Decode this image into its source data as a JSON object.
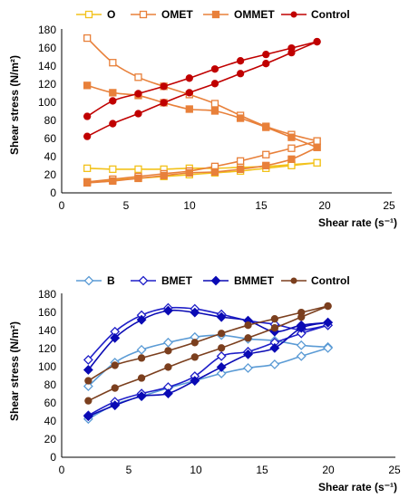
{
  "charts": [
    {
      "legend": [
        "O",
        "OMET",
        "OMMET",
        "Control"
      ],
      "xlabel": "Shear rate (s⁻¹)",
      "ylabel": "Shear stress (N/m²)",
      "xticks": [
        "0",
        "5",
        "10",
        "15",
        "20",
        "25"
      ],
      "yticks": [
        "0",
        "20",
        "40",
        "60",
        "80",
        "100",
        "120",
        "140",
        "160",
        "180"
      ]
    },
    {
      "legend": [
        "B",
        "BMET",
        "BMMET",
        "Control"
      ],
      "xlabel": "Shear rate (s⁻¹)",
      "ylabel": "Shear stress (N/m²)",
      "xticks": [
        "0",
        "5",
        "10",
        "15",
        "20",
        "25"
      ],
      "yticks": [
        "0",
        "20",
        "40",
        "60",
        "80",
        "100",
        "120",
        "140",
        "160",
        "180"
      ]
    }
  ],
  "chart_data": [
    {
      "type": "line",
      "xlim": [
        0,
        25
      ],
      "ylim": [
        0,
        180
      ],
      "legend_position": "top",
      "grid": false,
      "series": [
        {
          "name": "O",
          "color": "#f2c21b",
          "marker": "square-open",
          "branches": [
            {
              "x": [
                2,
                4,
                6,
                8,
                10,
                12,
                14,
                16,
                18,
                20
              ],
              "y": [
                27,
                26,
                26,
                26,
                27,
                27,
                28,
                29,
                31,
                33
              ]
            },
            {
              "x": [
                2,
                4,
                6,
                8,
                10,
                12,
                14,
                16,
                18,
                20
              ],
              "y": [
                12,
                14,
                16,
                18,
                20,
                22,
                24,
                27,
                30,
                33
              ]
            }
          ]
        },
        {
          "name": "OMET",
          "color": "#e8803a",
          "marker": "square-open",
          "branches": [
            {
              "x": [
                2,
                4,
                6,
                8,
                10,
                12,
                14,
                16,
                18,
                20
              ],
              "y": [
                170,
                143,
                127,
                117,
                108,
                98,
                85,
                73,
                64,
                57
              ]
            },
            {
              "x": [
                2,
                4,
                6,
                8,
                10,
                12,
                14,
                16,
                18,
                20
              ],
              "y": [
                12,
                15,
                18,
                21,
                24,
                29,
                35,
                42,
                49,
                57
              ]
            }
          ]
        },
        {
          "name": "OMMET",
          "color": "#e8803a",
          "marker": "square-filled",
          "branches": [
            {
              "x": [
                2,
                4,
                6,
                8,
                10,
                12,
                14,
                16,
                18,
                20
              ],
              "y": [
                118,
                110,
                107,
                99,
                92,
                90,
                82,
                72,
                61,
                50
              ]
            },
            {
              "x": [
                2,
                4,
                6,
                8,
                10,
                12,
                14,
                16,
                18,
                20
              ],
              "y": [
                11,
                13,
                16,
                19,
                22,
                23,
                26,
                30,
                37,
                50
              ]
            }
          ]
        },
        {
          "name": "Control",
          "color": "#c00000",
          "marker": "circle-filled",
          "branches": [
            {
              "x": [
                2,
                4,
                6,
                8,
                10,
                12,
                14,
                16,
                18,
                20
              ],
              "y": [
                84,
                101,
                109,
                117,
                126,
                136,
                145,
                152,
                159,
                166
              ]
            },
            {
              "x": [
                2,
                4,
                6,
                8,
                10,
                12,
                14,
                16,
                18,
                20
              ],
              "y": [
                62,
                76,
                87,
                99,
                110,
                120,
                131,
                142,
                154,
                166
              ]
            }
          ]
        }
      ]
    },
    {
      "type": "line",
      "xlim": [
        0,
        25
      ],
      "ylim": [
        0,
        180
      ],
      "legend_position": "top",
      "grid": false,
      "series": [
        {
          "name": "B",
          "color": "#5b9bd5",
          "marker": "diamond-open",
          "branches": [
            {
              "x": [
                2,
                4,
                6,
                8,
                10,
                12,
                14,
                16,
                18,
                20
              ],
              "y": [
                78,
                104,
                118,
                126,
                132,
                134,
                130,
                128,
                123,
                121
              ]
            },
            {
              "x": [
                2,
                4,
                6,
                8,
                10,
                12,
                14,
                16,
                18,
                20
              ],
              "y": [
                42,
                58,
                67,
                76,
                84,
                92,
                98,
                102,
                111,
                120
              ]
            }
          ]
        },
        {
          "name": "BMET",
          "color": "#1f1fc8",
          "marker": "diamond-open",
          "branches": [
            {
              "x": [
                2,
                4,
                6,
                8,
                10,
                12,
                14,
                16,
                18,
                20
              ],
              "y": [
                107,
                138,
                156,
                164,
                163,
                157,
                150,
                146,
                140,
                145
              ]
            },
            {
              "x": [
                2,
                4,
                6,
                8,
                10,
                12,
                14,
                16,
                18,
                20
              ],
              "y": [
                46,
                61,
                70,
                77,
                89,
                111,
                116,
                126,
                136,
                145
              ]
            }
          ]
        },
        {
          "name": "BMMET",
          "color": "#0a0ab4",
          "marker": "diamond-filled",
          "branches": [
            {
              "x": [
                2,
                4,
                6,
                8,
                10,
                12,
                14,
                16,
                18,
                20
              ],
              "y": [
                96,
                131,
                151,
                161,
                159,
                154,
                150,
                138,
                145,
                148
              ]
            },
            {
              "x": [
                2,
                4,
                6,
                8,
                10,
                12,
                14,
                16,
                18,
                20
              ],
              "y": [
                45,
                57,
                67,
                70,
                84,
                99,
                113,
                120,
                142,
                148
              ]
            }
          ]
        },
        {
          "name": "Control",
          "color": "#7b3f1e",
          "marker": "circle-filled",
          "branches": [
            {
              "x": [
                2,
                4,
                6,
                8,
                10,
                12,
                14,
                16,
                18,
                20
              ],
              "y": [
                84,
                101,
                109,
                117,
                126,
                136,
                145,
                152,
                159,
                166
              ]
            },
            {
              "x": [
                2,
                4,
                6,
                8,
                10,
                12,
                14,
                16,
                18,
                20
              ],
              "y": [
                62,
                76,
                87,
                99,
                110,
                120,
                131,
                142,
                154,
                166
              ]
            }
          ]
        }
      ]
    }
  ]
}
